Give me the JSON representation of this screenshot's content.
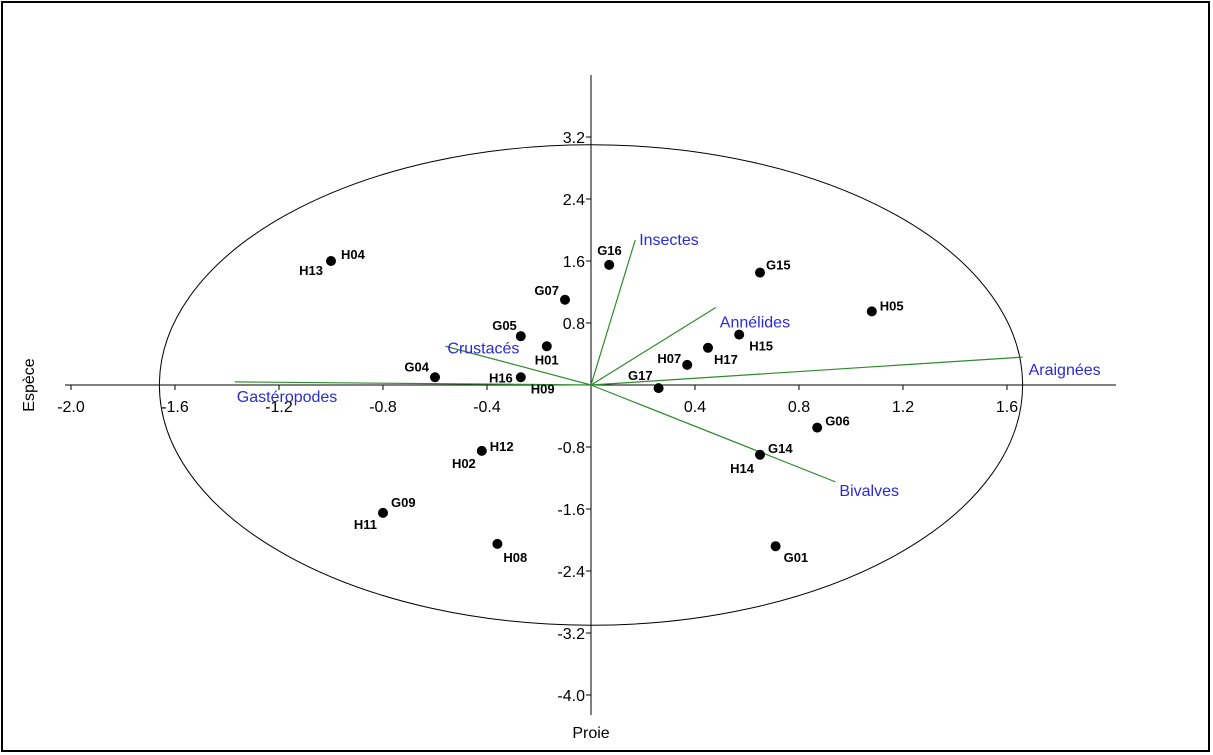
{
  "chart_data": {
    "type": "scatter",
    "title": "",
    "xlabel": "Proie",
    "ylabel": "Espèce",
    "xlim": [
      -2.0,
      1.85
    ],
    "ylim": [
      -4.2,
      4.0
    ],
    "grid": false,
    "x_ticks": [
      -2.0,
      -1.6,
      -1.2,
      -0.8,
      -0.4,
      0.4,
      0.8,
      1.2,
      1.6
    ],
    "y_ticks": [
      3.2,
      2.4,
      1.6,
      0.8,
      -0.8,
      -1.6,
      -2.4,
      -3.2,
      -4.0
    ],
    "colors": {
      "points": "#000000",
      "vectors": "#2e8b2e",
      "vector_labels": "#2a2ad8",
      "ellipse": "#000000"
    },
    "ellipse": {
      "cx": 0.0,
      "cy": 0.0,
      "rx": 1.66,
      "ry": 3.1
    },
    "points": [
      {
        "label": "H04",
        "x": -1.0,
        "y": 1.6
      },
      {
        "label": "H13",
        "x": -1.0,
        "y": 1.6
      },
      {
        "label": "G16",
        "x": 0.07,
        "y": 1.55
      },
      {
        "label": "G15",
        "x": 0.65,
        "y": 1.45
      },
      {
        "label": "G07",
        "x": -0.1,
        "y": 1.1
      },
      {
        "label": "H05",
        "x": 1.08,
        "y": 0.95
      },
      {
        "label": "G05",
        "x": -0.27,
        "y": 0.63
      },
      {
        "label": "H15",
        "x": 0.57,
        "y": 0.65
      },
      {
        "label": "H01",
        "x": -0.17,
        "y": 0.5
      },
      {
        "label": "H17",
        "x": 0.45,
        "y": 0.48
      },
      {
        "label": "H07",
        "x": 0.37,
        "y": 0.26
      },
      {
        "label": "G04",
        "x": -0.6,
        "y": 0.1
      },
      {
        "label": "H16",
        "x": -0.27,
        "y": 0.1
      },
      {
        "label": "H09",
        "x": -0.27,
        "y": 0.1
      },
      {
        "label": "G17",
        "x": 0.26,
        "y": -0.04
      },
      {
        "label": "G06",
        "x": 0.87,
        "y": -0.55
      },
      {
        "label": "G14",
        "x": 0.65,
        "y": -0.9
      },
      {
        "label": "H14",
        "x": 0.65,
        "y": -0.9
      },
      {
        "label": "H12",
        "x": -0.42,
        "y": -0.85
      },
      {
        "label": "H02",
        "x": -0.42,
        "y": -0.85
      },
      {
        "label": "G09",
        "x": -0.8,
        "y": -1.65
      },
      {
        "label": "H11",
        "x": -0.8,
        "y": -1.65
      },
      {
        "label": "H08",
        "x": -0.36,
        "y": -2.05
      },
      {
        "label": "G01",
        "x": 0.71,
        "y": -2.08
      }
    ],
    "vectors": [
      {
        "name": "Insectes",
        "x": 0.17,
        "y": 1.87
      },
      {
        "name": "Annélides",
        "x": 0.48,
        "y": 1.0
      },
      {
        "name": "Araignées",
        "x": 1.66,
        "y": 0.36
      },
      {
        "name": "Bivalves",
        "x": 0.94,
        "y": -1.25
      },
      {
        "name": "Crustacés",
        "x": -0.56,
        "y": 0.5
      },
      {
        "name": "Gastéropodes",
        "x": -1.37,
        "y": 0.04
      }
    ]
  }
}
